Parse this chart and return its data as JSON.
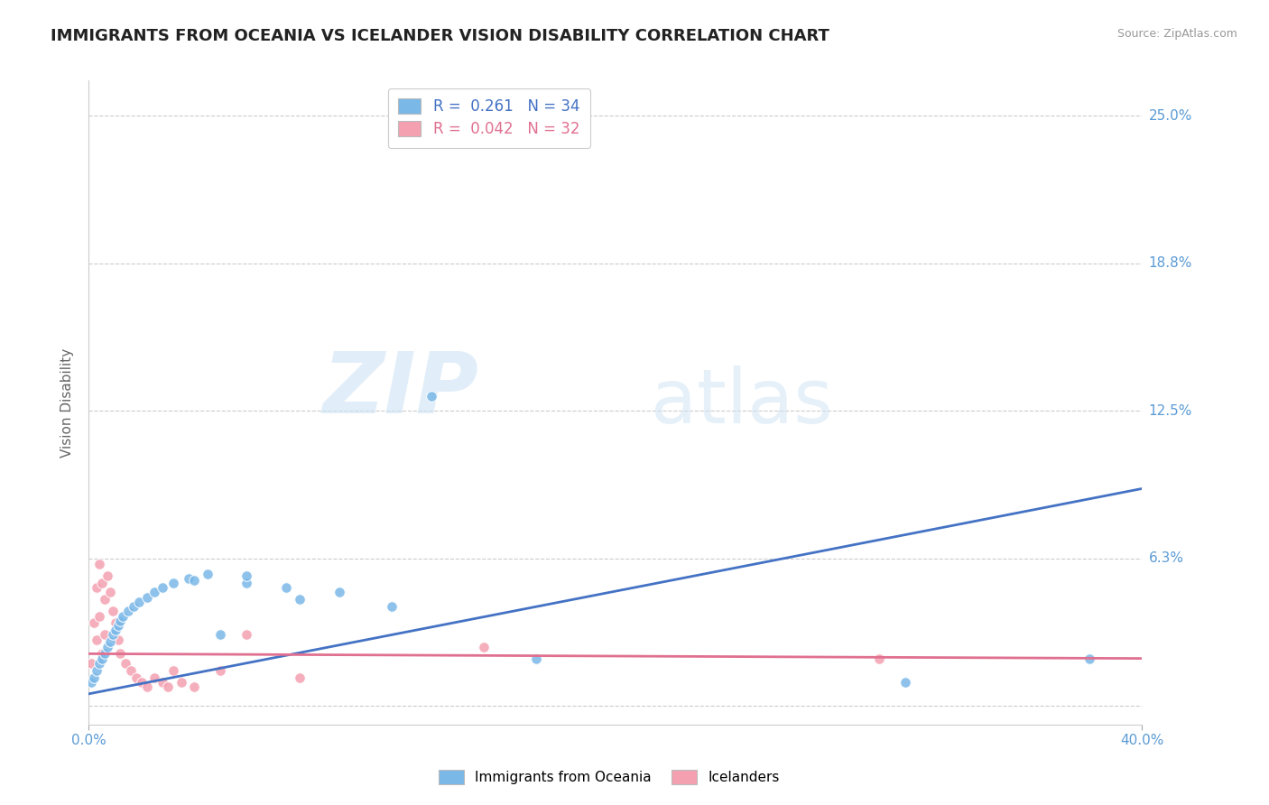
{
  "title": "IMMIGRANTS FROM OCEANIA VS ICELANDER VISION DISABILITY CORRELATION CHART",
  "source": "Source: ZipAtlas.com",
  "ylabel": "Vision Disability",
  "xlim": [
    0.0,
    0.4
  ],
  "ylim": [
    -0.008,
    0.265
  ],
  "yticks": [
    0.0,
    0.0625,
    0.125,
    0.1875,
    0.25
  ],
  "ytick_labels": [
    "",
    "6.3%",
    "12.5%",
    "18.8%",
    "25.0%"
  ],
  "xtick_vals": [
    0.0,
    0.4
  ],
  "xtick_labels": [
    "0.0%",
    "40.0%"
  ],
  "series1_color": "#7ab8e8",
  "series2_color": "#f4a0b0",
  "series1_line_color": "#4472c4",
  "series2_line_color": "#e07090",
  "blue_scatter_x": [
    0.001,
    0.002,
    0.003,
    0.004,
    0.005,
    0.006,
    0.007,
    0.008,
    0.009,
    0.01,
    0.011,
    0.012,
    0.013,
    0.015,
    0.017,
    0.019,
    0.022,
    0.025,
    0.028,
    0.032,
    0.038,
    0.045,
    0.06,
    0.075,
    0.095,
    0.115,
    0.04,
    0.06,
    0.13,
    0.08,
    0.05,
    0.17,
    0.31,
    0.38
  ],
  "blue_scatter_y": [
    0.01,
    0.012,
    0.015,
    0.018,
    0.02,
    0.022,
    0.025,
    0.027,
    0.03,
    0.032,
    0.034,
    0.036,
    0.038,
    0.04,
    0.042,
    0.044,
    0.046,
    0.048,
    0.05,
    0.052,
    0.054,
    0.056,
    0.052,
    0.05,
    0.048,
    0.042,
    0.053,
    0.055,
    0.131,
    0.045,
    0.03,
    0.02,
    0.01,
    0.02
  ],
  "pink_scatter_x": [
    0.001,
    0.002,
    0.003,
    0.003,
    0.004,
    0.004,
    0.005,
    0.005,
    0.006,
    0.006,
    0.007,
    0.008,
    0.009,
    0.01,
    0.011,
    0.012,
    0.014,
    0.016,
    0.018,
    0.02,
    0.022,
    0.025,
    0.028,
    0.03,
    0.032,
    0.035,
    0.04,
    0.05,
    0.06,
    0.08,
    0.15,
    0.3
  ],
  "pink_scatter_y": [
    0.018,
    0.035,
    0.05,
    0.028,
    0.06,
    0.038,
    0.052,
    0.022,
    0.045,
    0.03,
    0.055,
    0.048,
    0.04,
    0.035,
    0.028,
    0.022,
    0.018,
    0.015,
    0.012,
    0.01,
    0.008,
    0.012,
    0.01,
    0.008,
    0.015,
    0.01,
    0.008,
    0.015,
    0.03,
    0.012,
    0.025,
    0.02
  ],
  "blue_line_x": [
    0.0,
    0.4
  ],
  "blue_line_y": [
    0.005,
    0.092
  ],
  "pink_line_x": [
    0.0,
    0.4
  ],
  "pink_line_y": [
    0.022,
    0.02
  ],
  "legend1_text": "R =  0.261   N = 34",
  "legend2_text": "R =  0.042   N = 32",
  "bottom_legend1": "Immigrants from Oceania",
  "bottom_legend2": "Icelanders"
}
